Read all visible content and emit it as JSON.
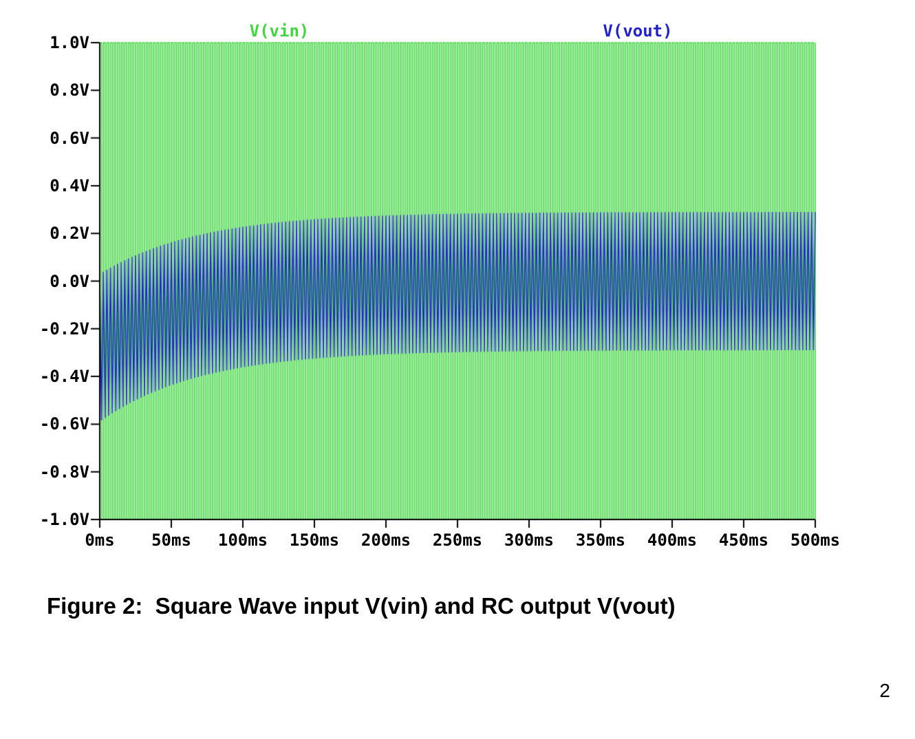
{
  "figure": {
    "caption": "Figure 2:  Square Wave input V(vin) and RC output V(vout)",
    "page_number": "2"
  },
  "chart_data": {
    "type": "line",
    "title": "",
    "background": "#ffffff",
    "axis_color": "#000000",
    "x_axis": {
      "min_ms": 0,
      "max_ms": 500,
      "ticks": [
        {
          "ms": 0,
          "label": "0ms"
        },
        {
          "ms": 50,
          "label": "50ms"
        },
        {
          "ms": 100,
          "label": "100ms"
        },
        {
          "ms": 150,
          "label": "150ms"
        },
        {
          "ms": 200,
          "label": "200ms"
        },
        {
          "ms": 250,
          "label": "250ms"
        },
        {
          "ms": 300,
          "label": "300ms"
        },
        {
          "ms": 350,
          "label": "350ms"
        },
        {
          "ms": 400,
          "label": "400ms"
        },
        {
          "ms": 450,
          "label": "450ms"
        },
        {
          "ms": 500,
          "label": "500ms"
        }
      ]
    },
    "y_axis": {
      "min_v": -1.0,
      "max_v": 1.0,
      "ticks": [
        {
          "v": 1.0,
          "label": "1.0V"
        },
        {
          "v": 0.8,
          "label": "0.8V"
        },
        {
          "v": 0.6,
          "label": "0.6V"
        },
        {
          "v": 0.4,
          "label": "0.4V"
        },
        {
          "v": 0.2,
          "label": "0.2V"
        },
        {
          "v": 0.0,
          "label": "0.0V"
        },
        {
          "v": -0.2,
          "label": "-0.2V"
        },
        {
          "v": -0.4,
          "label": "-0.4V"
        },
        {
          "v": -0.6,
          "label": "-0.6V"
        },
        {
          "v": -0.8,
          "label": "-0.8V"
        },
        {
          "v": -1.0,
          "label": "-1.0V"
        }
      ]
    },
    "legend": [
      {
        "name": "V(vin)",
        "color": "#3fd83f"
      },
      {
        "name": "V(vout)",
        "color": "#2121cf"
      }
    ],
    "series": [
      {
        "name": "V(vin)",
        "waveform": "square",
        "color": "#3fd83f",
        "amplitude_v": 1.0,
        "period_ms": 2.5
      },
      {
        "name": "V(vout)",
        "waveform": "triangle-envelope",
        "color": "#2121cf",
        "period_ms": 2.5,
        "upper_envelope": {
          "start_v": 0.03,
          "end_v": 0.29,
          "tau_ms": 70
        },
        "lower_envelope": {
          "start_v": -0.59,
          "end_v": -0.29,
          "tau_ms": 70
        }
      }
    ]
  }
}
